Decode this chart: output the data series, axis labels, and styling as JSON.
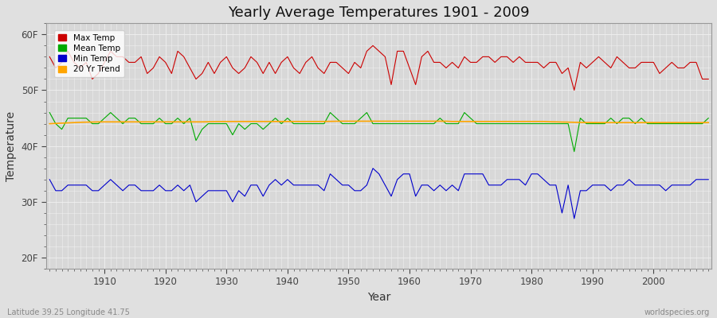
{
  "title": "Yearly Average Temperatures 1901 - 2009",
  "xlabel": "Year",
  "ylabel": "Temperature",
  "start_year": 1901,
  "end_year": 2009,
  "yticks": [
    20,
    30,
    40,
    50,
    60
  ],
  "ytick_labels": [
    "20F",
    "30F",
    "40F",
    "50F",
    "60F"
  ],
  "ylim": [
    18,
    62
  ],
  "figsize": [
    9.0,
    4.0
  ],
  "dpi": 100,
  "background_color": "#e0e0e0",
  "plot_bg_color": "#d8d8d8",
  "grid_color": "#f0f0f0",
  "colors": {
    "max": "#cc0000",
    "mean": "#00aa00",
    "min": "#0000cc",
    "trend": "#ffa500"
  },
  "legend_labels": [
    "Max Temp",
    "Mean Temp",
    "Min Temp",
    "20 Yr Trend"
  ],
  "footer_left": "Latitude 39.25 Longitude 41.75",
  "footer_right": "worldspecies.org",
  "max_temps": [
    56,
    54,
    55,
    57,
    55,
    54,
    55,
    52,
    53,
    55,
    57,
    56,
    56,
    55,
    55,
    56,
    53,
    54,
    56,
    55,
    53,
    57,
    56,
    54,
    52,
    53,
    55,
    53,
    55,
    56,
    54,
    53,
    54,
    56,
    55,
    53,
    55,
    53,
    55,
    56,
    54,
    53,
    55,
    56,
    54,
    53,
    55,
    55,
    54,
    53,
    55,
    54,
    57,
    58,
    57,
    56,
    51,
    57,
    57,
    54,
    51,
    56,
    57,
    55,
    55,
    54,
    55,
    54,
    56,
    55,
    55,
    56,
    56,
    55,
    56,
    56,
    55,
    56,
    55,
    55,
    55,
    54,
    55,
    55,
    53,
    54,
    50,
    55,
    54,
    55,
    56,
    55,
    54,
    56,
    55,
    54,
    54,
    55,
    55,
    55,
    53,
    54,
    55,
    54,
    54,
    55,
    55,
    52,
    52
  ],
  "mean_temps": [
    46,
    44,
    43,
    45,
    45,
    45,
    45,
    44,
    44,
    45,
    46,
    45,
    44,
    45,
    45,
    44,
    44,
    44,
    45,
    44,
    44,
    45,
    44,
    45,
    41,
    43,
    44,
    44,
    44,
    44,
    42,
    44,
    43,
    44,
    44,
    43,
    44,
    45,
    44,
    45,
    44,
    44,
    44,
    44,
    44,
    44,
    46,
    45,
    44,
    44,
    44,
    45,
    46,
    44,
    44,
    44,
    44,
    44,
    44,
    44,
    44,
    44,
    44,
    44,
    45,
    44,
    44,
    44,
    46,
    45,
    44,
    44,
    44,
    44,
    44,
    44,
    44,
    44,
    44,
    44,
    44,
    44,
    44,
    44,
    44,
    44,
    39,
    45,
    44,
    44,
    44,
    44,
    45,
    44,
    45,
    45,
    44,
    45,
    44,
    44,
    44,
    44,
    44,
    44,
    44,
    44,
    44,
    44,
    45
  ],
  "min_temps": [
    34,
    32,
    32,
    33,
    33,
    33,
    33,
    32,
    32,
    33,
    34,
    33,
    32,
    33,
    33,
    32,
    32,
    32,
    33,
    32,
    32,
    33,
    32,
    33,
    30,
    31,
    32,
    32,
    32,
    32,
    30,
    32,
    31,
    33,
    33,
    31,
    33,
    34,
    33,
    34,
    33,
    33,
    33,
    33,
    33,
    32,
    35,
    34,
    33,
    33,
    32,
    32,
    33,
    36,
    35,
    33,
    31,
    34,
    35,
    35,
    31,
    33,
    33,
    32,
    33,
    32,
    33,
    32,
    35,
    35,
    35,
    35,
    33,
    33,
    33,
    34,
    34,
    34,
    33,
    35,
    35,
    34,
    33,
    33,
    28,
    33,
    27,
    32,
    32,
    33,
    33,
    33,
    32,
    33,
    33,
    34,
    33,
    33,
    33,
    33,
    33,
    32,
    33,
    33,
    33,
    33,
    34,
    34,
    34
  ],
  "trend": [
    44.0,
    44.05,
    44.1,
    44.15,
    44.2,
    44.25,
    44.28,
    44.3,
    44.32,
    44.33,
    44.33,
    44.33,
    44.33,
    44.33,
    44.33,
    44.33,
    44.33,
    44.33,
    44.33,
    44.33,
    44.33,
    44.33,
    44.33,
    44.33,
    44.33,
    44.33,
    44.35,
    44.37,
    44.38,
    44.39,
    44.4,
    44.4,
    44.4,
    44.4,
    44.4,
    44.4,
    44.4,
    44.4,
    44.4,
    44.4,
    44.4,
    44.4,
    44.4,
    44.4,
    44.4,
    44.4,
    44.42,
    44.44,
    44.45,
    44.45,
    44.45,
    44.45,
    44.45,
    44.45,
    44.45,
    44.45,
    44.45,
    44.45,
    44.45,
    44.45,
    44.45,
    44.45,
    44.45,
    44.45,
    44.45,
    44.45,
    44.4,
    44.4,
    44.4,
    44.4,
    44.4,
    44.4,
    44.4,
    44.4,
    44.4,
    44.4,
    44.4,
    44.4,
    44.4,
    44.4,
    44.4,
    44.4,
    44.35,
    44.33,
    44.3,
    44.28,
    44.25,
    44.23,
    44.22,
    44.21,
    44.2,
    44.2,
    44.2,
    44.2,
    44.2,
    44.2,
    44.2,
    44.2,
    44.2,
    44.2,
    44.2,
    44.2,
    44.2,
    44.2,
    44.2,
    44.2,
    44.2,
    44.2,
    44.2
  ]
}
